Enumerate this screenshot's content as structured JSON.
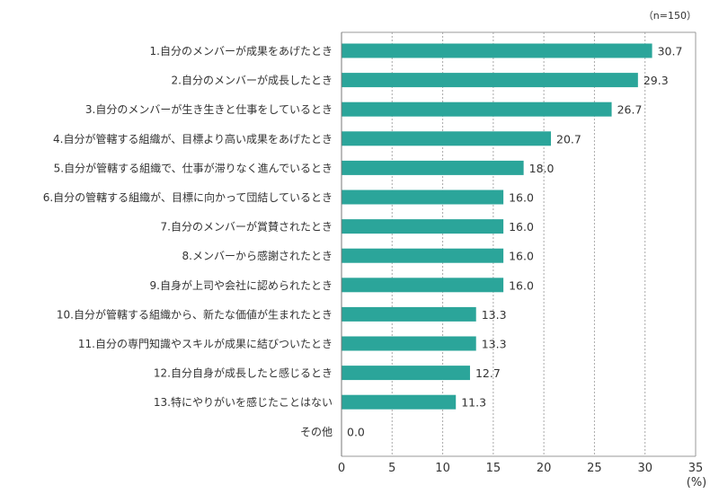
{
  "chart_data": {
    "type": "bar",
    "orientation": "horizontal",
    "sample_note": "（n=150）",
    "unit_label": "(%)",
    "xlim": [
      0,
      35
    ],
    "xticks": [
      0,
      5,
      10,
      15,
      20,
      25,
      30,
      35
    ],
    "grid": "vertical dotted",
    "bar_color": "#2ba59a",
    "categories": [
      "1.自分のメンバーが成果をあげたとき",
      "2.自分のメンバーが成長したとき",
      "3.自分のメンバーが生き生きと仕事をしているとき",
      "4.自分が管轄する組織が、目標より高い成果をあげたとき",
      "5.自分が管轄する組織で、仕事が滞りなく進んでいるとき",
      "6.自分の管轄する組織が、目標に向かって団結しているとき",
      "7.自分のメンバーが賞賛されたとき",
      "8.メンバーから感謝されたとき",
      "9.自身が上司や会社に認められたとき",
      "10.自分が管轄する組織から、新たな価値が生まれたとき",
      "11.自分の専門知識やスキルが成果に結びついたとき",
      "12.自分自身が成長したと感じるとき",
      "13.特にやりがいを感じたことはない",
      "その他"
    ],
    "values": [
      30.7,
      29.3,
      26.7,
      20.7,
      18.0,
      16.0,
      16.0,
      16.0,
      16.0,
      13.3,
      13.3,
      12.7,
      11.3,
      0.0
    ],
    "value_labels": [
      "30.7",
      "29.3",
      "26.7",
      "20.7",
      "18.0",
      "16.0",
      "16.0",
      "16.0",
      "16.0",
      "13.3",
      "13.3",
      "12.7",
      "11.3",
      "0.0"
    ]
  }
}
